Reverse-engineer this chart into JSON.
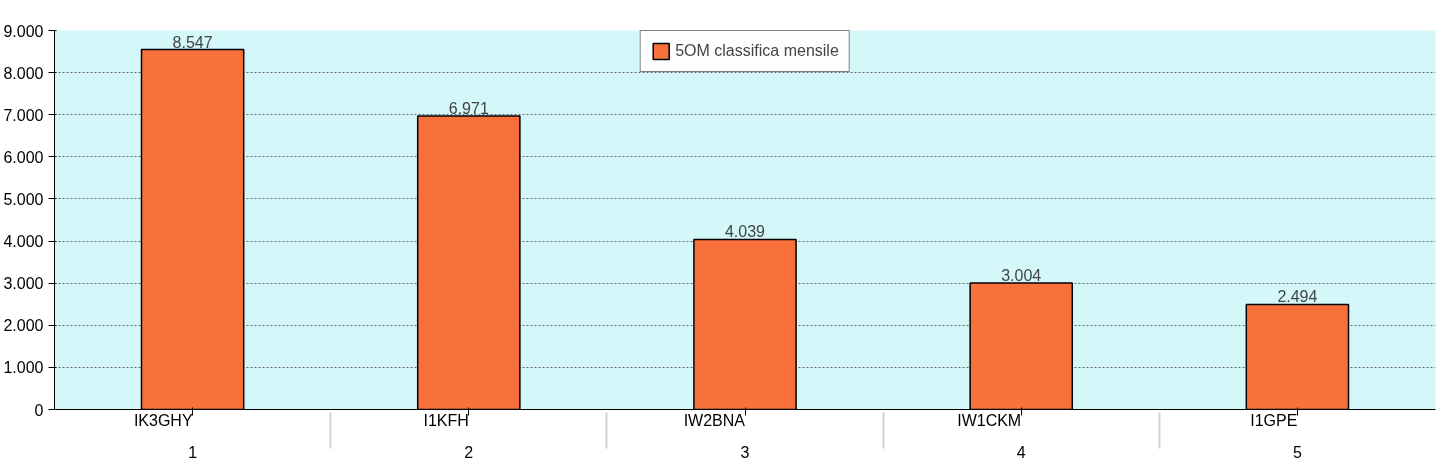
{
  "chart_data": {
    "type": "bar",
    "categories": [
      "IK3GHY",
      "I1KFH",
      "IW2BNA",
      "IW1CKM",
      "I1GPE"
    ],
    "series": [
      {
        "name": "5OM classifica mensile",
        "color": "#f8703a",
        "values": [
          8547,
          6971,
          4039,
          3004,
          2494
        ]
      }
    ],
    "value_labels": [
      "8.547",
      "6.971",
      "4.039",
      "3.004",
      "2.494"
    ],
    "annotations": [
      "1",
      "2",
      "3",
      "4",
      "5"
    ],
    "ylim": [
      0,
      9000
    ],
    "yticks": [
      0,
      {
        "value": 1000,
        "label": "1.000"
      },
      {
        "value": 2000,
        "label": "2.000"
      },
      {
        "value": 3000,
        "label": "3.000"
      },
      {
        "value": 4000,
        "label": "4.000"
      },
      {
        "value": 5000,
        "label": "5.000"
      },
      {
        "value": 6000,
        "label": "6.000"
      },
      {
        "value": 7000,
        "label": "7.000"
      },
      {
        "value": 8000,
        "label": "8.000"
      },
      {
        "value": 9000,
        "label": "9.000"
      }
    ],
    "grid": "y",
    "legend": "top"
  }
}
